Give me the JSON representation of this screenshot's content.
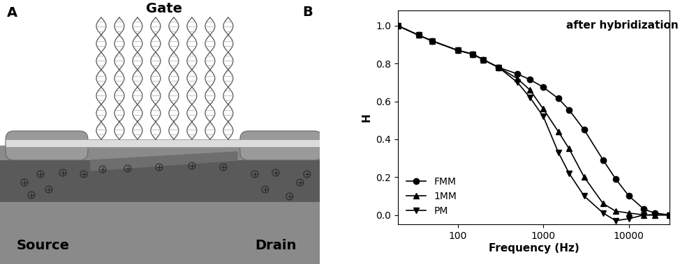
{
  "diagram": {
    "panel_label": "A",
    "gate": "Gate",
    "source": "Source",
    "drain": "Drain"
  },
  "chart_data": {
    "type": "line",
    "title": "B",
    "annotations": [
      "after hybridization"
    ],
    "x_label": "Frequency (Hz)",
    "y_label": "H",
    "log": "x",
    "x": [
      20,
      35,
      50,
      100,
      150,
      200,
      300,
      500,
      700,
      1000,
      1500,
      2000,
      3000,
      5000,
      7000,
      10000,
      15000,
      20000,
      30000
    ],
    "series": [
      {
        "name": "FMM",
        "color": "#000000",
        "marker": "circle",
        "line_style": "solid",
        "values": [
          1.0,
          0.95,
          0.92,
          0.87,
          0.85,
          0.82,
          0.78,
          0.745,
          0.715,
          0.675,
          0.615,
          0.555,
          0.45,
          0.29,
          0.19,
          0.1,
          0.03,
          0.01,
          0.0
        ]
      },
      {
        "name": "1MM",
        "color": "#000000",
        "marker": "triangle_up",
        "line_style": "solid",
        "values": [
          1.0,
          0.95,
          0.92,
          0.87,
          0.85,
          0.82,
          0.78,
          0.72,
          0.66,
          0.56,
          0.44,
          0.35,
          0.2,
          0.06,
          0.02,
          0.01,
          0.0,
          0.0,
          0.0
        ]
      },
      {
        "name": "PM",
        "color": "#000000",
        "marker": "triangle_down",
        "line_style": "solid",
        "values": [
          1.0,
          0.95,
          0.92,
          0.87,
          0.85,
          0.82,
          0.78,
          0.7,
          0.62,
          0.52,
          0.33,
          0.22,
          0.1,
          0.01,
          -0.03,
          -0.02,
          0.0,
          0.0,
          0.0
        ]
      }
    ],
    "xlim": [
      20,
      30000
    ],
    "xticks": [
      100,
      1000,
      10000
    ],
    "ylim": [
      -0.05,
      1.08
    ],
    "yticks": [
      0.0,
      0.2,
      0.4,
      0.6,
      0.8,
      1.0
    ],
    "legend": "lower left"
  }
}
